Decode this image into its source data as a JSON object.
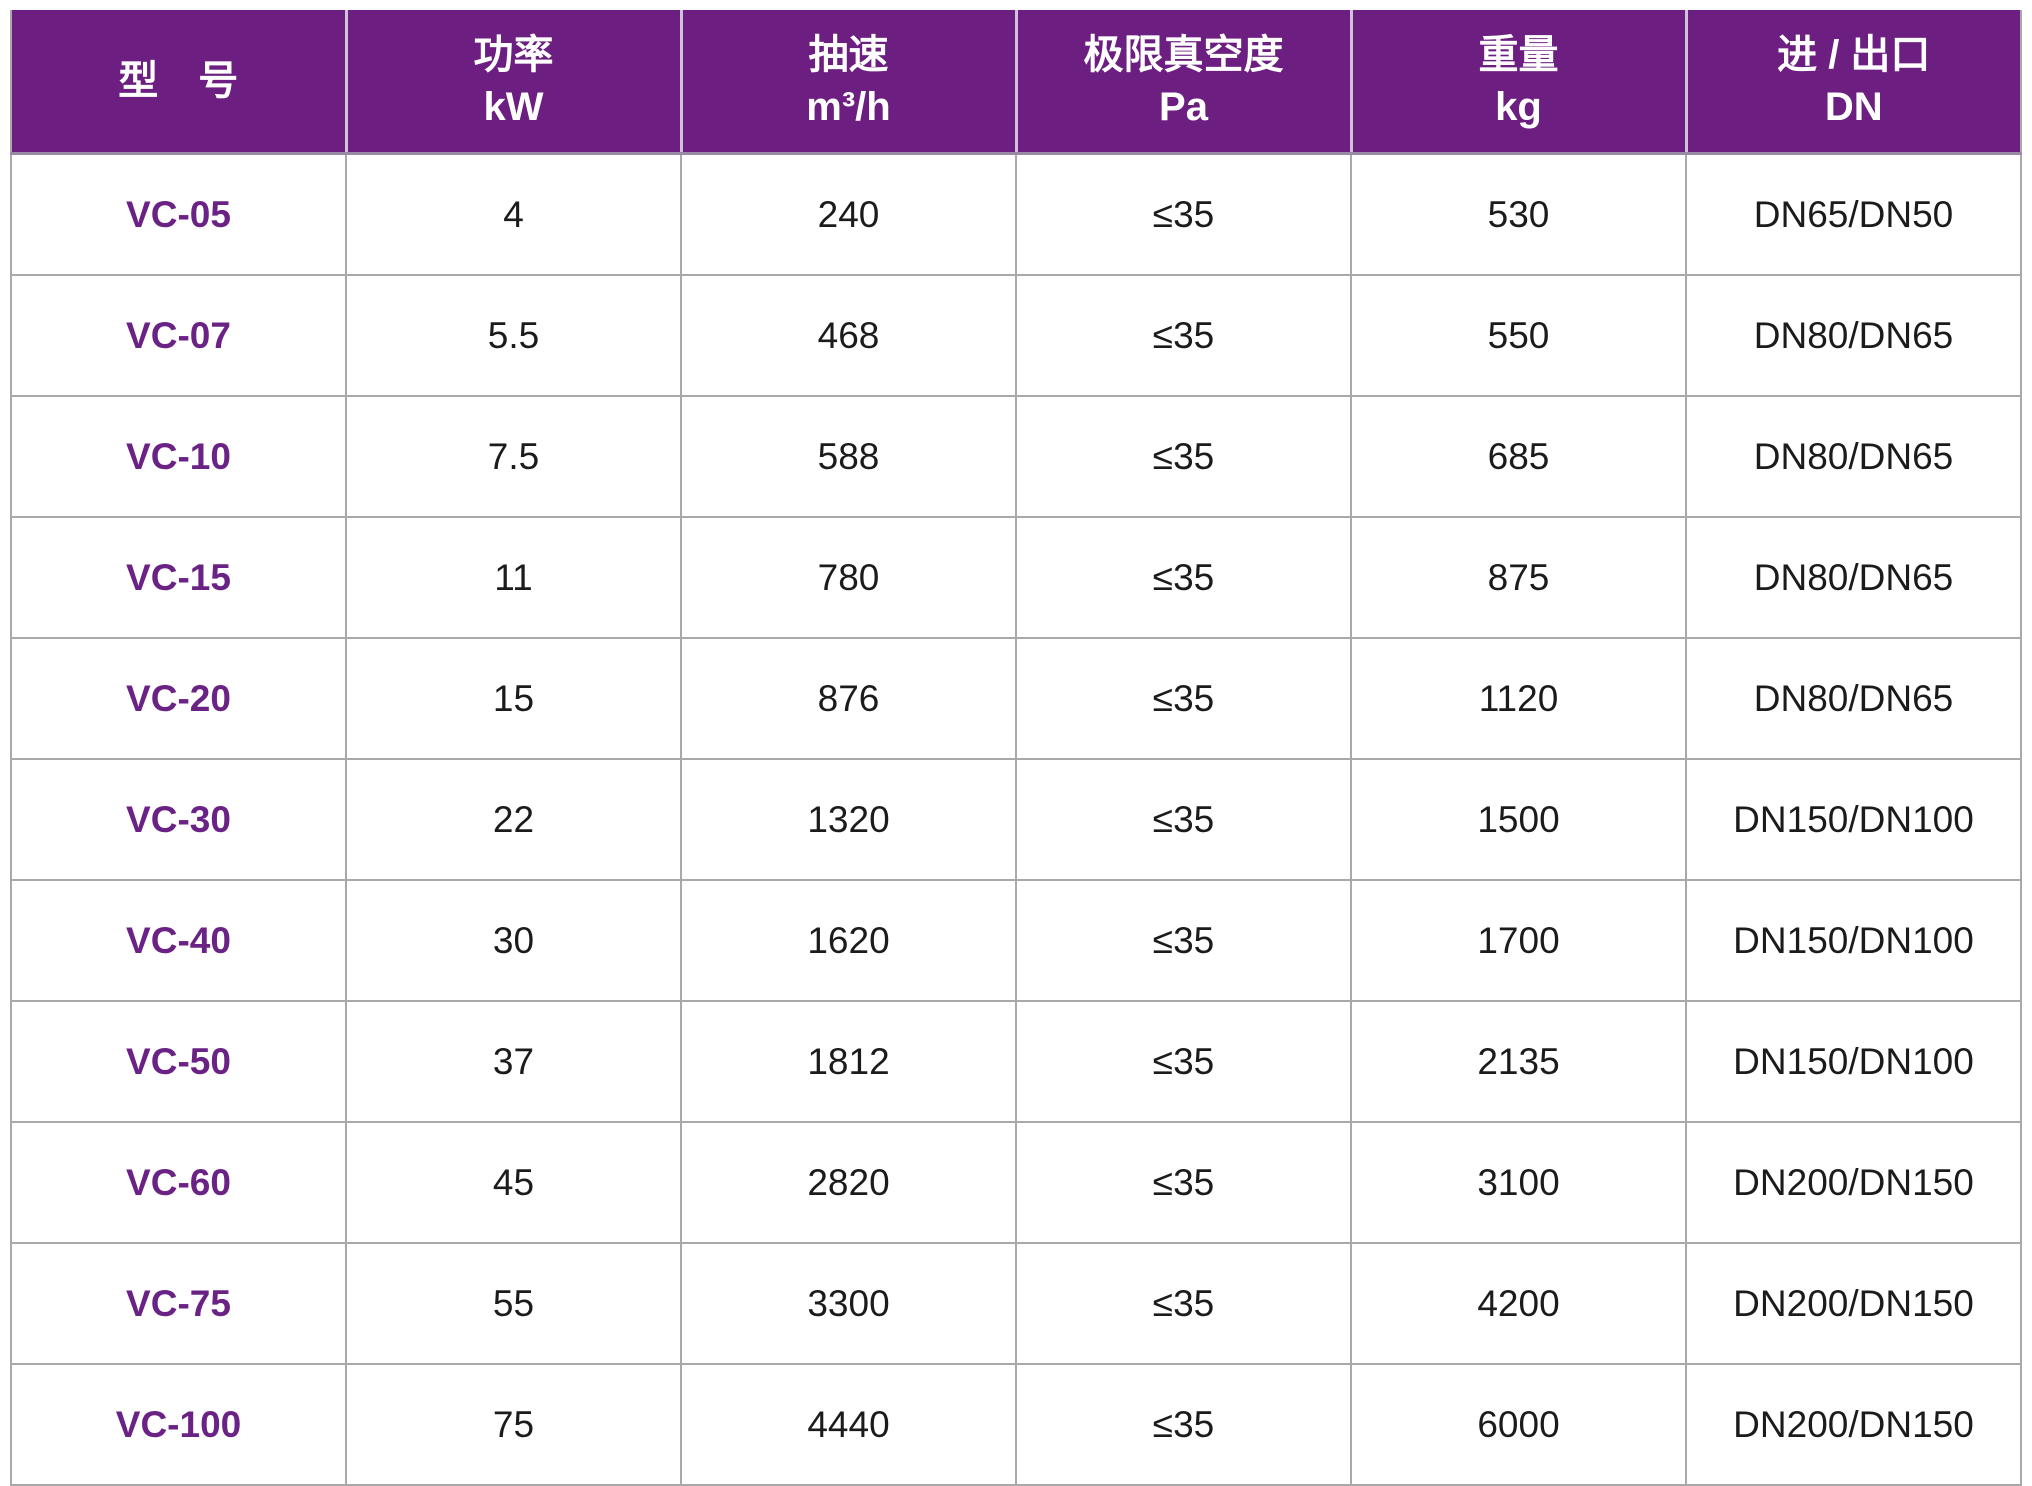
{
  "colors": {
    "header_bg": "#6C1F80",
    "header_text": "#FFFFFF",
    "model_text": "#6A2385",
    "body_text": "#1B1B1B",
    "grid_line": "#A9A9A9",
    "header_divider": "#CFC2D9"
  },
  "table": {
    "columns": [
      {
        "label": "型　号",
        "unit": ""
      },
      {
        "label": "功率",
        "unit": "kW"
      },
      {
        "label": "抽速",
        "unit": "m³/h"
      },
      {
        "label": "极限真空度",
        "unit": "Pa"
      },
      {
        "label": "重量",
        "unit": "kg"
      },
      {
        "label": "进 / 出口",
        "unit": "DN"
      }
    ],
    "rows": [
      {
        "model": "VC-05",
        "power_kw": "4",
        "speed_m3h": "240",
        "vacuum_pa": "≤35",
        "weight_kg": "530",
        "ports_dn": "DN65/DN50"
      },
      {
        "model": "VC-07",
        "power_kw": "5.5",
        "speed_m3h": "468",
        "vacuum_pa": "≤35",
        "weight_kg": "550",
        "ports_dn": "DN80/DN65"
      },
      {
        "model": "VC-10",
        "power_kw": "7.5",
        "speed_m3h": "588",
        "vacuum_pa": "≤35",
        "weight_kg": "685",
        "ports_dn": "DN80/DN65"
      },
      {
        "model": "VC-15",
        "power_kw": "11",
        "speed_m3h": "780",
        "vacuum_pa": "≤35",
        "weight_kg": "875",
        "ports_dn": "DN80/DN65"
      },
      {
        "model": "VC-20",
        "power_kw": "15",
        "speed_m3h": "876",
        "vacuum_pa": "≤35",
        "weight_kg": "1120",
        "ports_dn": "DN80/DN65"
      },
      {
        "model": "VC-30",
        "power_kw": "22",
        "speed_m3h": "1320",
        "vacuum_pa": "≤35",
        "weight_kg": "1500",
        "ports_dn": "DN150/DN100"
      },
      {
        "model": "VC-40",
        "power_kw": "30",
        "speed_m3h": "1620",
        "vacuum_pa": "≤35",
        "weight_kg": "1700",
        "ports_dn": "DN150/DN100"
      },
      {
        "model": "VC-50",
        "power_kw": "37",
        "speed_m3h": "1812",
        "vacuum_pa": "≤35",
        "weight_kg": "2135",
        "ports_dn": "DN150/DN100"
      },
      {
        "model": "VC-60",
        "power_kw": "45",
        "speed_m3h": "2820",
        "vacuum_pa": "≤35",
        "weight_kg": "3100",
        "ports_dn": "DN200/DN150"
      },
      {
        "model": "VC-75",
        "power_kw": "55",
        "speed_m3h": "3300",
        "vacuum_pa": "≤35",
        "weight_kg": "4200",
        "ports_dn": "DN200/DN150"
      },
      {
        "model": "VC-100",
        "power_kw": "75",
        "speed_m3h": "4440",
        "vacuum_pa": "≤35",
        "weight_kg": "6000",
        "ports_dn": "DN200/DN150"
      }
    ]
  }
}
